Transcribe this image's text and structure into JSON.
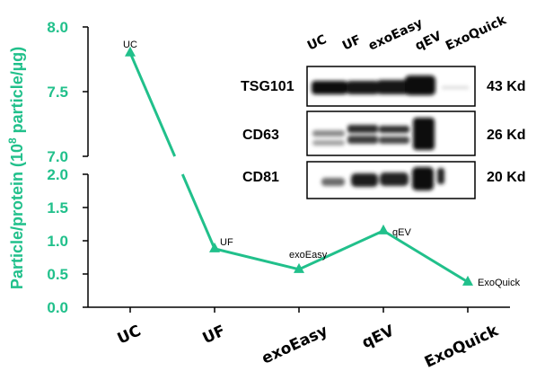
{
  "chart_data": {
    "type": "line",
    "categories": [
      "UC",
      "UF",
      "exoEasy",
      "qEV",
      "ExoQuick"
    ],
    "series": [
      {
        "name": "Particle/protein",
        "values": [
          7.8,
          0.88,
          0.57,
          1.15,
          0.38
        ]
      }
    ],
    "point_labels": [
      "UC",
      "UF",
      "exoEasy",
      "qEV",
      "ExoQuick"
    ],
    "ylabel_prefix": "Particle/protein (10",
    "ylabel_exponent": "8",
    "ylabel_suffix": " particle/µg)",
    "y_axis_break": {
      "lower_range": [
        0,
        2.0
      ],
      "upper_range": [
        7.0,
        8.0
      ]
    },
    "y_ticks_lower": [
      "0.0",
      "0.5",
      "1.0",
      "1.5",
      "2.0"
    ],
    "y_ticks_upper": [
      "7.0",
      "7.5",
      "8.0"
    ],
    "color": "#21c08b"
  },
  "western_blot": {
    "lane_labels": [
      "UC",
      "UF",
      "exoEasy",
      "qEV",
      "ExoQuick"
    ],
    "proteins": [
      {
        "name": "TSG101",
        "size": "43 Kd"
      },
      {
        "name": "CD63",
        "size": "26 Kd"
      },
      {
        "name": "CD81",
        "size": "20 Kd"
      }
    ]
  }
}
